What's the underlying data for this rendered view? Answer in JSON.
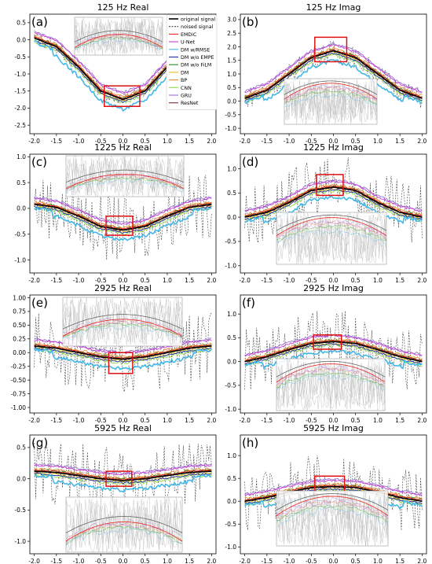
{
  "figure": {
    "legend": {
      "entries": [
        {
          "label": "original signal",
          "color": "#000000",
          "style": "solid"
        },
        {
          "label": "noised signal",
          "color": "#444444",
          "style": "dashed"
        },
        {
          "label": "EMDiC",
          "color": "#e8261d",
          "style": "solid"
        },
        {
          "label": "U-Net",
          "color": "#c23bd4",
          "style": "solid"
        },
        {
          "label": "DM w/RMSE",
          "color": "#42b8e8",
          "style": "solid"
        },
        {
          "label": "DM w/o EMPE",
          "color": "#1c2fb5",
          "style": "solid"
        },
        {
          "label": "DM w/o FiLM",
          "color": "#2a8a2a",
          "style": "solid"
        },
        {
          "label": "DM",
          "color": "#e3c21b",
          "style": "solid"
        },
        {
          "label": "BP",
          "color": "#f08a2a",
          "style": "solid"
        },
        {
          "label": "CNN",
          "color": "#8fd84a",
          "style": "solid"
        },
        {
          "label": "GRU",
          "color": "#9a6fd1",
          "style": "solid"
        },
        {
          "label": "ResNet",
          "color": "#7a2f2f",
          "style": "solid"
        }
      ]
    }
  },
  "chart_data": [
    {
      "panel": "(a)",
      "type": "line",
      "title": "125 Hz Real",
      "xlim": [
        -2.1,
        2.1
      ],
      "ylim": [
        -2.75,
        0.75
      ],
      "xticks": [
        "-2.0",
        "-1.5",
        "-1.0",
        "-0.5",
        "0.0",
        "0.5",
        "1.0",
        "1.5",
        "2.0"
      ],
      "yticks": [
        "0.5",
        "0.0",
        "-0.5",
        "-1.0",
        "-1.5",
        "-2.0",
        "-2.5"
      ],
      "original": {
        "x": [
          -2.0,
          -1.5,
          -1.0,
          -0.5,
          0.0,
          0.5,
          1.0,
          1.5,
          2.0
        ],
        "y": [
          0.05,
          -0.2,
          -0.8,
          -1.5,
          -1.75,
          -1.5,
          -0.8,
          -0.2,
          0.05
        ]
      }
    },
    {
      "panel": "(b)",
      "type": "line",
      "title": "125 Hz Imag",
      "xlim": [
        -2.1,
        2.1
      ],
      "ylim": [
        -1.2,
        3.2
      ],
      "xticks": [
        "-2.0",
        "-1.5",
        "-1.0",
        "-0.5",
        "0.0",
        "0.5",
        "1.0",
        "1.5",
        "2.0"
      ],
      "yticks": [
        "3.0",
        "2.5",
        "2.0",
        "1.5",
        "1.0",
        "0.5",
        "0.0",
        "-0.5",
        "-1.0"
      ],
      "original": {
        "x": [
          -2.0,
          -1.5,
          -1.0,
          -0.5,
          0.0,
          0.5,
          1.0,
          1.5,
          2.0
        ],
        "y": [
          0.1,
          0.4,
          1.0,
          1.6,
          1.85,
          1.6,
          1.0,
          0.4,
          0.1
        ]
      }
    },
    {
      "panel": "(c)",
      "type": "line",
      "title": "1225 Hz Real",
      "xlim": [
        -2.1,
        2.1
      ],
      "ylim": [
        -1.25,
        1.05
      ],
      "xticks": [
        "-2.0",
        "-1.5",
        "-1.0",
        "-0.5",
        "0.0",
        "0.5",
        "1.0",
        "1.5",
        "2.0"
      ],
      "yticks": [
        "1.0",
        "0.5",
        "0.0",
        "-0.5",
        "-1.0"
      ],
      "original": {
        "x": [
          -2.0,
          -1.5,
          -1.0,
          -0.5,
          0.0,
          0.5,
          1.0,
          1.5,
          2.0
        ],
        "y": [
          0.08,
          0.02,
          -0.15,
          -0.35,
          -0.42,
          -0.35,
          -0.15,
          0.02,
          0.08
        ]
      }
    },
    {
      "panel": "(d)",
      "type": "line",
      "title": "1225 Hz Imag",
      "xlim": [
        -2.1,
        2.1
      ],
      "ylim": [
        -1.15,
        1.3
      ],
      "xticks": [
        "-2.0",
        "-1.5",
        "-1.0",
        "-0.5",
        "0.0",
        "0.5",
        "1.0",
        "1.5",
        "2.0"
      ],
      "yticks": [
        "1.0",
        "0.5",
        "0.0",
        "-0.5",
        "-1.0"
      ],
      "original": {
        "x": [
          -2.0,
          -1.5,
          -1.0,
          -0.5,
          0.0,
          0.5,
          1.0,
          1.5,
          2.0
        ],
        "y": [
          0.0,
          0.1,
          0.3,
          0.55,
          0.62,
          0.55,
          0.3,
          0.1,
          0.0
        ]
      }
    },
    {
      "panel": "(e)",
      "type": "line",
      "title": "2925 Hz Real",
      "xlim": [
        -2.1,
        2.1
      ],
      "ylim": [
        -1.1,
        1.05
      ],
      "xticks": [
        "-2.0",
        "-1.5",
        "-1.0",
        "-0.5",
        "0.0",
        "0.5",
        "1.0",
        "1.5",
        "2.0"
      ],
      "yticks": [
        "1.00",
        "0.75",
        "0.50",
        "0.25",
        "0.00",
        "-0.25",
        "-0.50",
        "-0.75",
        "-1.00"
      ],
      "original": {
        "x": [
          -2.0,
          -1.5,
          -1.0,
          -0.5,
          0.0,
          0.5,
          1.0,
          1.5,
          2.0
        ],
        "y": [
          0.12,
          0.08,
          0.0,
          -0.08,
          -0.12,
          -0.08,
          0.0,
          0.08,
          0.12
        ]
      }
    },
    {
      "panel": "(f)",
      "type": "line",
      "title": "2925 Hz Imag",
      "xlim": [
        -2.1,
        2.1
      ],
      "ylim": [
        -1.08,
        1.4
      ],
      "xticks": [
        "-2.0",
        "-1.5",
        "-1.0",
        "-0.5",
        "0.0",
        "0.5",
        "1.0",
        "1.5",
        "2.0"
      ],
      "yticks": [
        "1.0",
        "0.5",
        "0.0",
        "-0.5",
        "-1.0"
      ],
      "original": {
        "x": [
          -2.0,
          -1.5,
          -1.0,
          -0.5,
          0.0,
          0.5,
          1.0,
          1.5,
          2.0
        ],
        "y": [
          0.0,
          0.1,
          0.25,
          0.38,
          0.42,
          0.38,
          0.25,
          0.1,
          0.0
        ]
      }
    },
    {
      "panel": "(g)",
      "type": "line",
      "title": "5925 Hz Real",
      "xlim": [
        -2.1,
        2.1
      ],
      "ylim": [
        -1.2,
        0.7
      ],
      "xticks": [
        "-2.0",
        "-1.5",
        "-1.0",
        "-0.5",
        "0.0",
        "0.5",
        "1.0",
        "1.5",
        "2.0"
      ],
      "yticks": [
        "0.5",
        "0.0",
        "-0.5",
        "-1.0"
      ],
      "original": {
        "x": [
          -2.0,
          -1.5,
          -1.0,
          -0.5,
          0.0,
          0.5,
          1.0,
          1.5,
          2.0
        ],
        "y": [
          0.12,
          0.1,
          0.05,
          0.0,
          -0.03,
          0.0,
          0.05,
          0.1,
          0.12
        ]
      }
    },
    {
      "panel": "(h)",
      "type": "line",
      "title": "5925 Hz Imag",
      "xlim": [
        -2.1,
        2.1
      ],
      "ylim": [
        -1.15,
        1.45
      ],
      "xticks": [
        "-2.0",
        "-1.5",
        "-1.0",
        "-0.5",
        "0.0",
        "0.5",
        "1.0",
        "1.5",
        "2.0"
      ],
      "yticks": [
        "1.0",
        "0.5",
        "0.0",
        "-0.5",
        "-1.0"
      ],
      "original": {
        "x": [
          -2.0,
          -1.5,
          -1.0,
          -0.5,
          0.0,
          0.5,
          1.0,
          1.5,
          2.0
        ],
        "y": [
          0.0,
          0.08,
          0.2,
          0.3,
          0.32,
          0.3,
          0.2,
          0.08,
          0.0
        ]
      }
    }
  ]
}
